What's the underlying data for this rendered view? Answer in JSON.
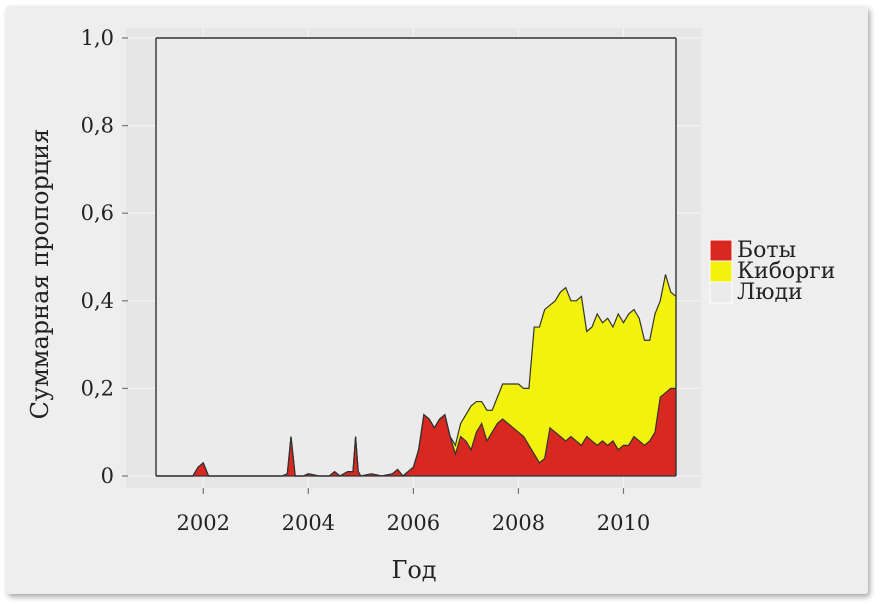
{
  "chart_data": {
    "type": "area",
    "stacked": true,
    "xlabel": "Год",
    "ylabel": "Суммарная пропорция",
    "xlim": [
      2001.1,
      2011.0
    ],
    "ylim": [
      0,
      1.0
    ],
    "xticks": [
      2002,
      2004,
      2006,
      2008,
      2010
    ],
    "xtick_labels": [
      "2002",
      "2004",
      "2006",
      "2008",
      "2010"
    ],
    "yticks": [
      0,
      0.2,
      0.4,
      0.6,
      0.8,
      1.0
    ],
    "ytick_labels": [
      "0",
      "0,2",
      "0,4",
      "0,6",
      "0,8",
      "1,0"
    ],
    "legend_position": "right",
    "legend": [
      {
        "label": "Боты",
        "color": "#d8281f"
      },
      {
        "label": "Киборги",
        "color": "#f2f20c"
      },
      {
        "label": "Люди",
        "color": "#ebebeb"
      }
    ],
    "colors": {
      "plot_bg": "#ebebeb",
      "bots": "#d8281f",
      "cyborgs": "#f2f20c",
      "humans": "#ebebeb"
    },
    "x": [
      2001.1,
      2001.8,
      2001.9,
      2002.0,
      2002.1,
      2002.3,
      2002.5,
      2003.0,
      2003.5,
      2003.6,
      2003.67,
      2003.75,
      2003.9,
      2004.0,
      2004.2,
      2004.4,
      2004.5,
      2004.6,
      2004.75,
      2004.85,
      2004.9,
      2004.95,
      2005.0,
      2005.2,
      2005.4,
      2005.6,
      2005.7,
      2005.8,
      2005.9,
      2006.0,
      2006.1,
      2006.2,
      2006.3,
      2006.4,
      2006.5,
      2006.6,
      2006.7,
      2006.8,
      2006.9,
      2007.0,
      2007.1,
      2007.2,
      2007.3,
      2007.4,
      2007.5,
      2007.6,
      2007.7,
      2007.8,
      2007.9,
      2008.0,
      2008.1,
      2008.2,
      2008.3,
      2008.4,
      2008.5,
      2008.6,
      2008.7,
      2008.8,
      2008.9,
      2009.0,
      2009.1,
      2009.2,
      2009.3,
      2009.4,
      2009.5,
      2009.6,
      2009.7,
      2009.8,
      2009.9,
      2010.0,
      2010.1,
      2010.2,
      2010.3,
      2010.4,
      2010.5,
      2010.6,
      2010.7,
      2010.8,
      2010.9,
      2011.0
    ],
    "series": [
      {
        "name": "Боты",
        "values": [
          0,
          0,
          0.02,
          0.03,
          0,
          0,
          0,
          0,
          0,
          0.005,
          0.09,
          0,
          0,
          0.005,
          0,
          0,
          0.01,
          0,
          0.01,
          0.01,
          0.09,
          0.01,
          0,
          0.005,
          0,
          0.005,
          0.015,
          0,
          0.01,
          0.02,
          0.06,
          0.14,
          0.13,
          0.11,
          0.13,
          0.14,
          0.09,
          0.05,
          0.09,
          0.08,
          0.06,
          0.1,
          0.12,
          0.08,
          0.1,
          0.12,
          0.13,
          0.12,
          0.11,
          0.1,
          0.09,
          0.07,
          0.05,
          0.03,
          0.04,
          0.11,
          0.1,
          0.09,
          0.08,
          0.09,
          0.08,
          0.07,
          0.09,
          0.08,
          0.07,
          0.08,
          0.07,
          0.08,
          0.06,
          0.07,
          0.07,
          0.09,
          0.08,
          0.07,
          0.08,
          0.1,
          0.18,
          0.19,
          0.2,
          0.2
        ]
      },
      {
        "name": "Киборги",
        "values": [
          0,
          0,
          0,
          0,
          0,
          0,
          0,
          0,
          0,
          0,
          0,
          0,
          0,
          0,
          0,
          0,
          0,
          0,
          0,
          0,
          0,
          0,
          0,
          0,
          0,
          0,
          0,
          0,
          0,
          0,
          0,
          0,
          0,
          0,
          0,
          0,
          0,
          0.02,
          0.03,
          0.06,
          0.1,
          0.07,
          0.05,
          0.07,
          0.05,
          0.06,
          0.08,
          0.09,
          0.1,
          0.11,
          0.11,
          0.13,
          0.29,
          0.31,
          0.34,
          0.28,
          0.3,
          0.33,
          0.35,
          0.31,
          0.32,
          0.34,
          0.24,
          0.26,
          0.3,
          0.27,
          0.29,
          0.26,
          0.31,
          0.28,
          0.3,
          0.29,
          0.28,
          0.24,
          0.23,
          0.27,
          0.22,
          0.27,
          0.22,
          0.21
        ]
      },
      {
        "name": "Люди",
        "values": [
          1.0,
          1.0,
          0.98,
          0.97,
          1.0,
          1.0,
          1.0,
          1.0,
          1.0,
          0.995,
          0.91,
          1.0,
          1.0,
          0.995,
          1.0,
          1.0,
          0.99,
          1.0,
          0.99,
          0.99,
          0.91,
          0.99,
          1.0,
          0.995,
          1.0,
          0.995,
          0.985,
          1.0,
          0.99,
          0.98,
          0.94,
          0.86,
          0.87,
          0.89,
          0.87,
          0.86,
          0.91,
          0.93,
          0.88,
          0.86,
          0.84,
          0.83,
          0.83,
          0.85,
          0.85,
          0.82,
          0.79,
          0.79,
          0.79,
          0.79,
          0.8,
          0.8,
          0.66,
          0.66,
          0.62,
          0.61,
          0.6,
          0.58,
          0.57,
          0.6,
          0.6,
          0.59,
          0.67,
          0.66,
          0.63,
          0.65,
          0.64,
          0.66,
          0.63,
          0.65,
          0.63,
          0.62,
          0.64,
          0.69,
          0.69,
          0.63,
          0.6,
          0.54,
          0.58,
          0.59
        ]
      }
    ]
  }
}
